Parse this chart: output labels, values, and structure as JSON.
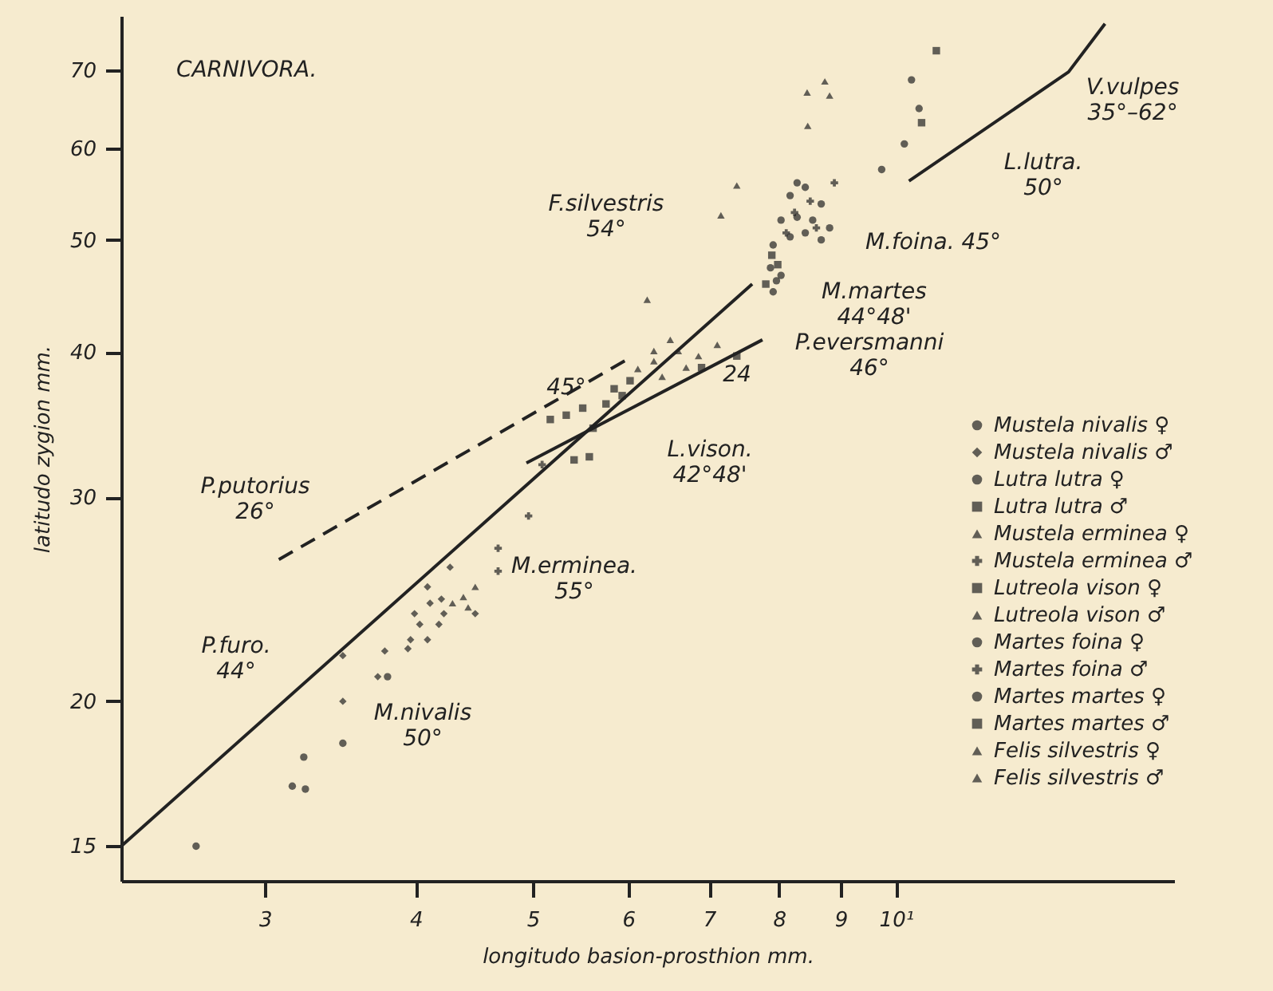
{
  "chart_data": {
    "type": "scatter",
    "title": "CARNIVORA.",
    "xlabel": "longitudo basion-prosthion mm.",
    "ylabel": "latitudo zygion mm.",
    "log": "xy",
    "xlim": [
      2.28,
      17
    ],
    "ylim": [
      14,
      78
    ],
    "xticks": [
      3,
      4,
      5,
      6,
      7,
      8,
      9,
      {
        "value": 10,
        "label": "10¹"
      }
    ],
    "yticks": [
      15,
      20,
      30,
      40,
      50,
      60,
      70
    ],
    "legend": "right",
    "series": [
      {
        "name": "Mustela nivalis ♀",
        "marker": "circle",
        "color": "#222222",
        "x": [
          2.63,
          3.16,
          3.24,
          3.23,
          3.48,
          3.79
        ],
        "values": [
          15.0,
          16.9,
          16.8,
          17.9,
          18.4,
          21.0
        ]
      },
      {
        "name": "Mustela nivalis ♂",
        "marker": "diamond",
        "color": "#222222",
        "x": [
          3.48,
          3.48,
          3.72,
          3.77,
          3.94,
          3.99,
          4.11,
          4.18,
          4.03,
          4.09,
          3.96,
          4.22,
          4.48,
          4.09,
          4.2,
          4.27
        ],
        "values": [
          20.0,
          21.9,
          21.0,
          22.1,
          22.2,
          23.8,
          24.3,
          23.3,
          23.3,
          22.6,
          22.6,
          23.8,
          23.8,
          25.1,
          24.5,
          26.1
        ]
      },
      {
        "name": "Lutra lutra ♀",
        "marker": "circle",
        "color": "#222222",
        "x": [
          10.3,
          10.45,
          10.16,
          9.73
        ],
        "values": [
          68.7,
          64.9,
          60.5,
          57.5
        ]
      },
      {
        "name": "Lutra lutra ♂",
        "marker": "square",
        "color": "#222222",
        "x": [
          10.8,
          10.5
        ],
        "values": [
          72.8,
          63.1
        ]
      },
      {
        "name": "Mustela erminea ♀",
        "marker": "triangle",
        "color": "#222222",
        "x": [
          4.38,
          4.48,
          4.42,
          4.29
        ],
        "values": [
          24.6,
          25.1,
          24.1,
          24.3
        ]
      },
      {
        "name": "Mustela erminea ♂",
        "marker": "cross",
        "color": "#222222",
        "x": [
          4.68,
          4.68,
          4.96,
          5.09
        ],
        "values": [
          27.1,
          25.9,
          28.9,
          32.0
        ]
      },
      {
        "name": "Lutreola vison ♀",
        "marker": "square",
        "color": "#222222",
        "x": [
          5.17,
          5.33,
          5.5,
          5.61,
          5.75,
          5.93,
          5.41,
          5.57,
          5.84,
          6.02,
          6.9,
          7.38
        ],
        "values": [
          35.0,
          35.3,
          35.8,
          34.4,
          36.1,
          36.7,
          32.3,
          32.5,
          37.2,
          37.8,
          38.8,
          39.7
        ]
      },
      {
        "name": "Lutreola vison ♂",
        "marker": "triangle",
        "color": "#222222",
        "x": [
          6.11,
          6.3,
          6.4,
          6.6,
          6.7,
          6.5,
          6.86,
          7.11
        ],
        "values": [
          38.7,
          39.3,
          38.1,
          40.1,
          38.8,
          41.0,
          39.7,
          40.6
        ]
      },
      {
        "name": "Martes foina ♀",
        "marker": "circle",
        "color": "#222222",
        "x": [
          7.91,
          8.17,
          8.41,
          8.67,
          8.03,
          8.28,
          8.53,
          8.81,
          8.17,
          8.41,
          8.28,
          8.67
        ],
        "values": [
          49.5,
          50.3,
          50.7,
          50.0,
          52.0,
          52.3,
          52.0,
          51.2,
          54.6,
          55.5,
          56.0,
          53.7
        ]
      },
      {
        "name": "Martes foina ♂",
        "marker": "cross",
        "color": "#222222",
        "x": [
          8.24,
          8.49,
          8.89,
          8.59,
          8.11
        ],
        "values": [
          52.8,
          54.0,
          56.0,
          51.2,
          50.7
        ]
      },
      {
        "name": "Martes martes ♀",
        "marker": "circle",
        "color": "#222222",
        "x": [
          7.87,
          7.96,
          7.91,
          8.03
        ],
        "values": [
          47.3,
          46.1,
          45.1,
          46.6
        ]
      },
      {
        "name": "Martes martes ♂",
        "marker": "square",
        "color": "#222222",
        "x": [
          7.8,
          7.98,
          7.89
        ],
        "values": [
          45.8,
          47.6,
          48.5
        ]
      },
      {
        "name": "Felis silvestris ♀",
        "marker": "triangle",
        "color": "#222222",
        "x": [
          8.44,
          8.73,
          8.81,
          7.38,
          7.16,
          6.22
        ],
        "values": [
          67.0,
          68.5,
          66.6,
          55.7,
          52.5,
          44.4
        ]
      },
      {
        "name": "Felis silvestris ♂",
        "marker": "triangle",
        "color": "#222222",
        "x": [
          8.45,
          6.3
        ],
        "values": [
          62.7,
          40.1
        ]
      },
      {
        "type": "line",
        "line_style": "solid",
        "color": "#222222",
        "x": [
          2.28,
          7.6
        ],
        "values": [
          15.0,
          45.8
        ]
      },
      {
        "type": "line",
        "line_style": "dashed",
        "color": "#222222",
        "x": [
          3.08,
          5.98
        ],
        "values": [
          26.5,
          39.4
        ]
      },
      {
        "type": "line",
        "line_style": "solid",
        "color": "#222222",
        "x": [
          4.94,
          7.75
        ],
        "values": [
          32.1,
          41.0
        ]
      },
      {
        "type": "line",
        "line_style": "solid",
        "color": "#222222",
        "x": [
          10.25,
          13.9,
          14.9
        ],
        "values": [
          56.2,
          69.8,
          76.8
        ]
      }
    ],
    "annotations": [
      "F.silvestris\n54°",
      "M.foina. 45°",
      "M.martes\n44°48'",
      "P.eversmanni\n46°",
      "L.lutra.\n50°",
      "V.vulpes\n35°–62°",
      "L.vison.\n42°48'",
      "P.putorius\n26°",
      "M.erminea.\n55°",
      "P.furo.\n44°",
      "M.nivalis\n50°",
      "45°",
      "24"
    ]
  }
}
